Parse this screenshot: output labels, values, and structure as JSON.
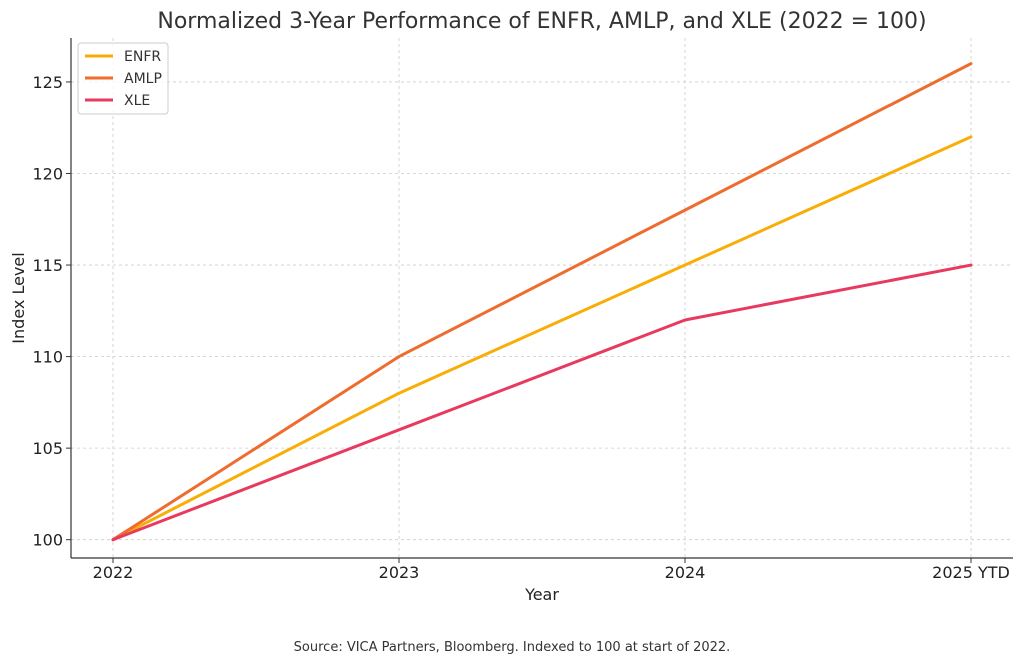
{
  "chart_data": {
    "type": "line",
    "title": "Normalized 3-Year Performance of ENFR, AMLP, and XLE (2022 = 100)",
    "xlabel": "Year",
    "ylabel": "Index Level",
    "categories": [
      "2022",
      "2023",
      "2024",
      "2025 YTD"
    ],
    "yticks": [
      100,
      105,
      110,
      115,
      120,
      125
    ],
    "ylim": [
      99,
      127.4
    ],
    "grid": true,
    "legend_position": "top-left",
    "series": [
      {
        "name": "ENFR",
        "color": "#f9ad07",
        "values": [
          100,
          108,
          115,
          122
        ]
      },
      {
        "name": "AMLP",
        "color": "#ee6c2e",
        "values": [
          100,
          110,
          118,
          126
        ]
      },
      {
        "name": "XLE",
        "color": "#e83a5f",
        "values": [
          100,
          106,
          112,
          115
        ]
      }
    ]
  },
  "source_note": "Source: VICA Partners, Bloomberg. Indexed to 100 at start of 2022."
}
